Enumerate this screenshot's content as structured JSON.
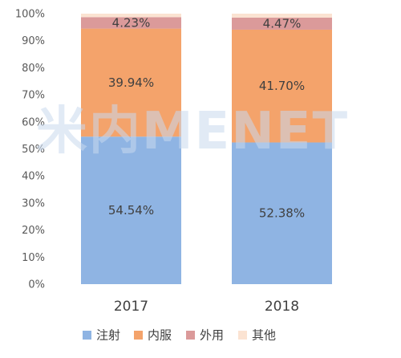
{
  "chart_data": {
    "type": "bar",
    "stacked": true,
    "percent": true,
    "categories": [
      "2017",
      "2018"
    ],
    "series": [
      {
        "name": "注射",
        "values": [
          54.54,
          52.38
        ],
        "labels": [
          "54.54%",
          "52.38%"
        ],
        "color": "#8fb4e3"
      },
      {
        "name": "内服",
        "values": [
          39.94,
          41.7
        ],
        "labels": [
          "39.94%",
          "41.70%"
        ],
        "color": "#f4a36b"
      },
      {
        "name": "外用",
        "values": [
          4.23,
          4.47
        ],
        "labels": [
          "4.23%",
          "4.47%"
        ],
        "color": "#db9a9a"
      },
      {
        "name": "其他",
        "values": [
          1.29,
          1.45
        ],
        "labels": [
          "",
          ""
        ],
        "color": "#fbe3d2"
      }
    ],
    "title": "",
    "xlabel": "",
    "ylabel": "",
    "ylim": [
      0,
      100
    ],
    "yticks": [
      "0%",
      "10%",
      "20%",
      "30%",
      "40%",
      "50%",
      "60%",
      "70%",
      "80%",
      "90%",
      "100%"
    ],
    "grid": false,
    "legend_position": "bottom"
  },
  "watermark": {
    "text": "米内MENET",
    "kind": "watermark"
  }
}
